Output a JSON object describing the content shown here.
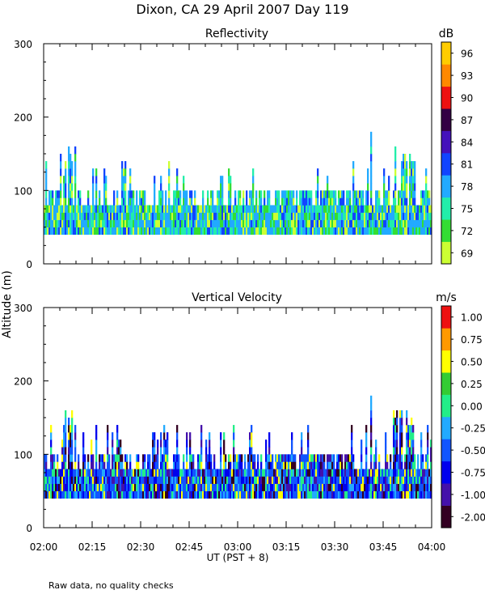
{
  "chart_data": {
    "title": "Dixon, CA 29 April 2007  Day 119",
    "ylabel": "Altitude (m)",
    "xlabel": "UT  (PST + 8)",
    "footnote": "Raw data, no quality checks",
    "xticks": [
      "02:00",
      "02:15",
      "02:30",
      "02:45",
      "03:00",
      "03:15",
      "03:30",
      "03:45",
      "04:00"
    ],
    "x_range_minutes": [
      0,
      120
    ],
    "panels": [
      {
        "type": "heatmap",
        "title": "Reflectivity",
        "unit": "dB",
        "ylim": [
          0,
          300
        ],
        "yticks": [
          "0",
          "100",
          "200",
          "300"
        ],
        "data_base_altitude": 40,
        "colorbar": {
          "labels": [
            "69",
            "72",
            "75",
            "78",
            "81",
            "84",
            "87",
            "90",
            "93",
            "96"
          ],
          "colors": [
            "#ccff33",
            "#33dd33",
            "#22eeaa",
            "#22aaff",
            "#1144ff",
            "#4411bb",
            "#330044",
            "#ee1111",
            "#ff8800",
            "#ffcc00"
          ]
        },
        "typical_top_altitude": [
          80,
          100
        ],
        "max_top_altitude": 180,
        "dominant_colors": [
          "#22aaff",
          "#22eeaa",
          "#33dd33",
          "#1144ff",
          "#ccff33"
        ]
      },
      {
        "type": "heatmap",
        "title": "Vertical Velocity",
        "unit": "m/s",
        "ylim": [
          0,
          300
        ],
        "yticks": [
          "0",
          "100",
          "200",
          "300"
        ],
        "data_base_altitude": 40,
        "colorbar": {
          "labels": [
            "-2.00",
            "-1.00",
            "-0.75",
            "-0.50",
            "-0.25",
            "0.00",
            "0.25",
            "0.50",
            "0.75",
            "1.00"
          ],
          "colors": [
            "#330022",
            "#4411aa",
            "#0000ee",
            "#1155ff",
            "#22aaff",
            "#22ee88",
            "#33cc33",
            "#ffff00",
            "#ff9900",
            "#ee1111"
          ]
        },
        "typical_top_altitude": [
          80,
          100
        ],
        "max_top_altitude": 180,
        "dominant_colors": [
          "#1155ff",
          "#0000ee",
          "#22aaff",
          "#4411aa",
          "#22ee88",
          "#330022",
          "#ffff00"
        ]
      }
    ]
  }
}
